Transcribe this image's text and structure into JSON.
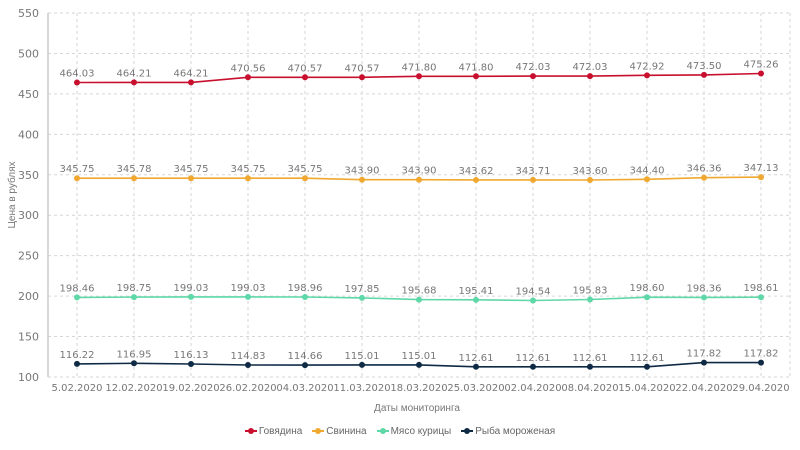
{
  "chart_data": {
    "type": "line",
    "title": "",
    "xlabel": "Даты мониторинга",
    "ylabel": "Цена в рублях",
    "ylim": [
      100,
      550
    ],
    "yticks": [
      "100",
      "150",
      "200",
      "250",
      "300",
      "350",
      "400",
      "450",
      "500",
      "550"
    ],
    "grid": true,
    "legend_position": "bottom",
    "categories": [
      "5.02.2020",
      "12.02.2020",
      "19.02.2020",
      "26.02.2020",
      "04.03.2020",
      "11.03.2020",
      "18.03.2020",
      "25.03.2020",
      "02.04.2020",
      "08.04.2020",
      "15.04.2020",
      "22.04.2020",
      "29.04.2020"
    ],
    "series": [
      {
        "name": "Говядина",
        "color": "#c8102e",
        "values": [
          464.03,
          464.21,
          464.21,
          470.56,
          470.57,
          470.57,
          471.8,
          471.8,
          472.03,
          472.03,
          472.92,
          473.5,
          475.26
        ],
        "labels": [
          "464.03",
          "464.21",
          "464.21",
          "470.56",
          "470.57",
          "470.57",
          "471.80",
          "471.80",
          "472.03",
          "472.03",
          "472.92",
          "473.50",
          "475.26"
        ]
      },
      {
        "name": "Свинина",
        "color": "#f0a830",
        "values": [
          345.75,
          345.78,
          345.75,
          345.75,
          345.75,
          343.9,
          343.9,
          343.62,
          343.71,
          343.6,
          344.4,
          346.36,
          347.13
        ],
        "labels": [
          "345.75",
          "345.78",
          "345.75",
          "345.75",
          "345.75",
          "343.90",
          "343.90",
          "343.62",
          "343.71",
          "343.60",
          "344.40",
          "346.36",
          "347.13"
        ]
      },
      {
        "name": "Мясо курицы",
        "color": "#5fd8a8",
        "values": [
          198.46,
          198.75,
          199.03,
          199.03,
          198.96,
          197.85,
          195.68,
          195.41,
          194.54,
          195.83,
          198.6,
          198.36,
          198.61
        ],
        "labels": [
          "198.46",
          "198.75",
          "199.03",
          "199.03",
          "198.96",
          "197.85",
          "195.68",
          "195.41",
          "194.54",
          "195.83",
          "198.60",
          "198.36",
          "198.61"
        ]
      },
      {
        "name": "Рыба мороженая",
        "color": "#0f2a44",
        "values": [
          116.22,
          116.95,
          116.13,
          114.83,
          114.66,
          115.01,
          115.01,
          112.61,
          112.61,
          112.61,
          112.61,
          117.82,
          117.82
        ],
        "labels": [
          "116.22",
          "116.95",
          "116.13",
          "114.83",
          "114.66",
          "115.01",
          "115.01",
          "112.61",
          "112.61",
          "112.61",
          "112.61",
          "117.82",
          "117.82"
        ]
      }
    ]
  }
}
